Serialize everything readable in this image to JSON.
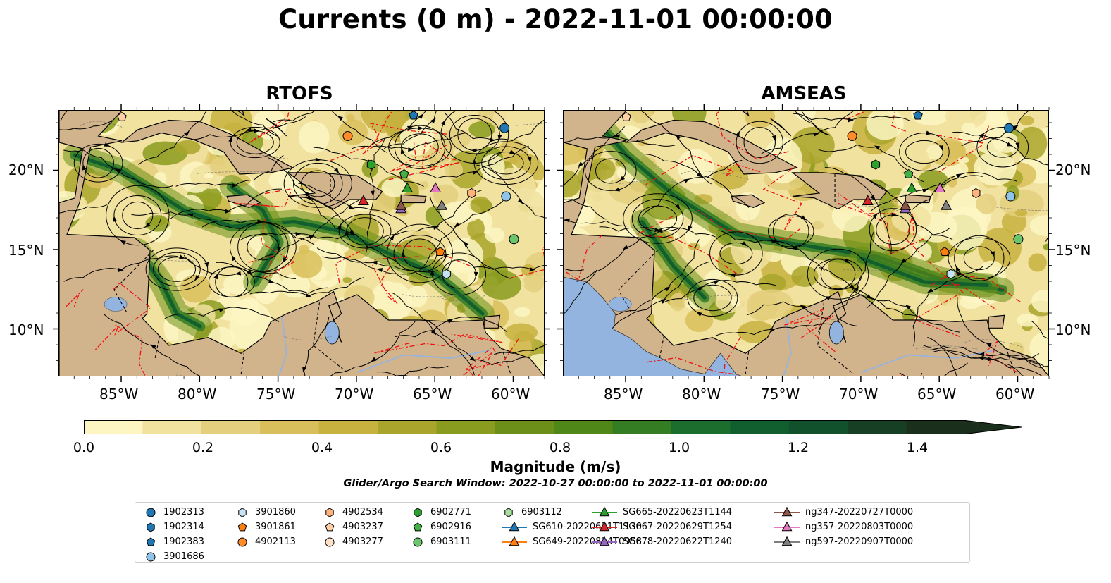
{
  "title": "Currents (0 m) - 2022-11-01 00:00:00",
  "panels": [
    {
      "title": "RTOFS"
    },
    {
      "title": "AMSEAS"
    }
  ],
  "axes": {
    "x_ticks": [
      "85°W",
      "80°W",
      "75°W",
      "70°W",
      "65°W",
      "60°W"
    ],
    "y_ticks": [
      "20°N",
      "15°N",
      "10°N"
    ]
  },
  "colorbar": {
    "label": "Magnitude (m/s)",
    "ticks": [
      "0.0",
      "0.2",
      "0.4",
      "0.6",
      "0.8",
      "1.0",
      "1.2",
      "1.4"
    ],
    "range": [
      0,
      1.5
    ],
    "extend": "max",
    "colors": [
      "#fdf6c3",
      "#f1e2a0",
      "#e4cf7e",
      "#d9bf5c",
      "#c7b240",
      "#a9a52c",
      "#8a9c1f",
      "#6b8f18",
      "#4f8718",
      "#347d22",
      "#1b6e2e",
      "#115f2f",
      "#11522c",
      "#173f24",
      "#1a2f1c"
    ]
  },
  "search_window": "Glider/Argo Search Window: 2022-10-27 00:00:00 to 2022-11-01 00:00:00",
  "legend": [
    {
      "label": "1902313",
      "marker": "circle",
      "color": "#1f77b4"
    },
    {
      "label": "1902314",
      "marker": "hexagon",
      "color": "#1f77b4"
    },
    {
      "label": "1902383",
      "marker": "pentagon",
      "color": "#1f77b4"
    },
    {
      "label": "3901686",
      "marker": "circle",
      "color": "#8fc4e8"
    },
    {
      "label": "3901860",
      "marker": "hexagon",
      "color": "#c6e2f5"
    },
    {
      "label": "3901861",
      "marker": "pentagon",
      "color": "#ff7f0e"
    },
    {
      "label": "4902113",
      "marker": "circle",
      "color": "#ff8c28"
    },
    {
      "label": "4902534",
      "marker": "hexagon",
      "color": "#ffb27a"
    },
    {
      "label": "4903237",
      "marker": "pentagon",
      "color": "#ffd0a6"
    },
    {
      "label": "4903277",
      "marker": "circle",
      "color": "#ffe2c6"
    },
    {
      "label": "6902771",
      "marker": "hexagon",
      "color": "#2ca02c"
    },
    {
      "label": "6902916",
      "marker": "pentagon",
      "color": "#43b043"
    },
    {
      "label": "6903111",
      "marker": "circle",
      "color": "#6cc46c"
    },
    {
      "label": "6903112",
      "marker": "hexagon",
      "color": "#a9e0a0"
    },
    {
      "label": "SG610-20220621T1130",
      "marker": "triangle",
      "color": "#1f77b4"
    },
    {
      "label": "SG649-20220814T0958",
      "marker": "triangle",
      "color": "#ff7f0e"
    },
    {
      "label": "SG665-20220623T1144",
      "marker": "triangle",
      "color": "#2ca02c"
    },
    {
      "label": "SG667-20220629T1254",
      "marker": "triangle",
      "color": "#d62728"
    },
    {
      "label": "SG678-20220622T1240",
      "marker": "triangle",
      "color": "#9467bd"
    },
    {
      "label": "ng347-20220727T0000",
      "marker": "triangle",
      "color": "#8c564b"
    },
    {
      "label": "ng357-20220803T0000",
      "marker": "triangle",
      "color": "#e377c2"
    },
    {
      "label": "ng597-20220907T0000",
      "marker": "triangle",
      "color": "#7f7f7f"
    }
  ],
  "observations": [
    {
      "label": "4903237",
      "lon": -85.0,
      "lat": 23.4
    },
    {
      "label": "1902383",
      "lon": -66.4,
      "lat": 23.5
    },
    {
      "label": "4902113",
      "lon": -70.6,
      "lat": 22.2
    },
    {
      "label": "1902313",
      "lon": -60.6,
      "lat": 22.7
    },
    {
      "label": "6902771",
      "lon": -69.1,
      "lat": 20.4
    },
    {
      "label": "6902916",
      "lon": -67.0,
      "lat": 19.8
    },
    {
      "label": "SG665-20220623T1144",
      "lon": -66.8,
      "lat": 18.9
    },
    {
      "label": "ng357-20220803T0000",
      "lon": -65.0,
      "lat": 18.9
    },
    {
      "label": "4902534",
      "lon": -62.7,
      "lat": 18.6
    },
    {
      "label": "3901686",
      "lon": -60.5,
      "lat": 18.4
    },
    {
      "label": "SG667-20220629T1254",
      "lon": -69.6,
      "lat": 18.1
    },
    {
      "label": "SG678-20220622T1240",
      "lon": -67.2,
      "lat": 17.6
    },
    {
      "label": "ng347-20220727T0000",
      "lon": -67.2,
      "lat": 17.8
    },
    {
      "label": "ng597-20220907T0000",
      "lon": -64.6,
      "lat": 17.8
    },
    {
      "label": "6903111",
      "lon": -60.0,
      "lat": 15.7
    },
    {
      "label": "3901861",
      "lon": -64.7,
      "lat": 14.9
    },
    {
      "label": "3901860",
      "lon": -64.3,
      "lat": 13.5
    }
  ]
}
